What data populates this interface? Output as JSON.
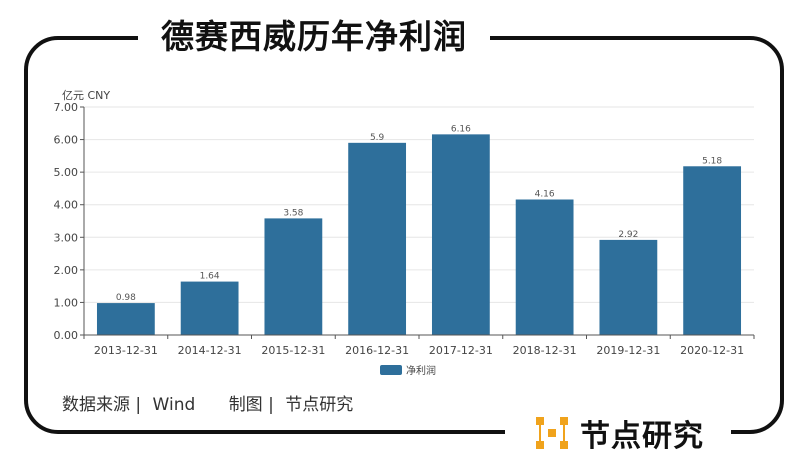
{
  "title": "德赛西威历年净利润",
  "chart_data": {
    "type": "bar",
    "unit_label": "亿元 CNY",
    "categories": [
      "2013-12-31",
      "2014-12-31",
      "2015-12-31",
      "2016-12-31",
      "2017-12-31",
      "2018-12-31",
      "2019-12-31",
      "2020-12-31"
    ],
    "series": [
      {
        "name": "净利润",
        "values": [
          0.98,
          1.64,
          3.58,
          5.9,
          6.16,
          4.16,
          2.92,
          5.18
        ]
      }
    ],
    "yticks": [
      "0.00",
      "1.00",
      "2.00",
      "3.00",
      "4.00",
      "5.00",
      "6.00",
      "7.00"
    ],
    "ylim": [
      0,
      7
    ],
    "grid": true,
    "legend_position": "bottom",
    "bar_color": "#2e6f9b"
  },
  "footer": {
    "source_label": "数据来源 |",
    "source_value": "Wind",
    "made_label": "制图 |",
    "made_value": "节点研究"
  },
  "brand": {
    "name": "节点研究",
    "logo_color": "#f0a31c"
  }
}
